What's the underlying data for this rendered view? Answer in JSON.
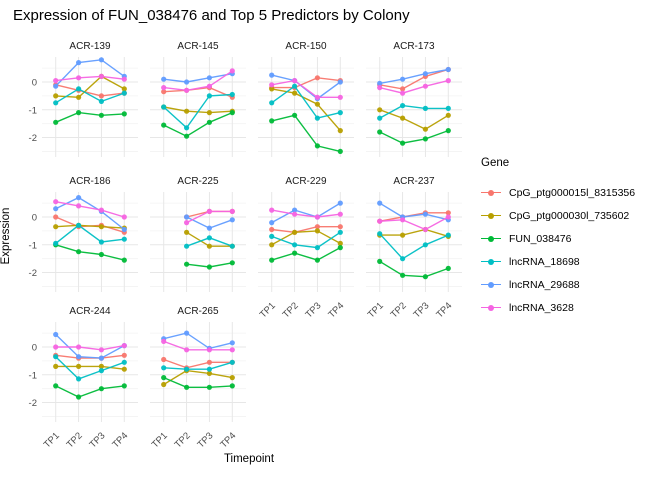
{
  "chart_data": {
    "type": "line",
    "title": "Expression of FUN_038476 and Top 5 Predictors by Colony",
    "xlabel": "Timepoint",
    "ylabel": "Expression",
    "x": [
      "TP1",
      "TP2",
      "TP3",
      "TP4"
    ],
    "ylim": [
      -2.7,
      0.9
    ],
    "y_major_ticks": [
      0,
      -1,
      -2
    ],
    "y_minor_ticks": [
      0.5,
      -0.5,
      -1.5,
      -2.5
    ],
    "grid": true,
    "legend_position": "right",
    "legend_title": "Gene",
    "genes": [
      {
        "name": "CpG_ptg000015l_8315356",
        "color": "#F8766D"
      },
      {
        "name": "CpG_ptg000030l_735602",
        "color": "#B79F00"
      },
      {
        "name": "FUN_038476",
        "color": "#00BA38"
      },
      {
        "name": "lncRNA_18698",
        "color": "#00BFC4"
      },
      {
        "name": "lncRNA_29688",
        "color": "#619CFF"
      },
      {
        "name": "lncRNA_3628",
        "color": "#F564E2"
      }
    ],
    "facets": [
      {
        "name": "ACR-139",
        "values": [
          [
            -0.1,
            -0.3,
            -0.5,
            -0.4
          ],
          [
            -0.5,
            -0.55,
            0.2,
            -0.25
          ],
          [
            -1.45,
            -1.1,
            -1.2,
            -1.15
          ],
          [
            -0.75,
            -0.25,
            -0.7,
            -0.4
          ],
          [
            -0.15,
            0.7,
            0.8,
            0.2
          ],
          [
            0.05,
            0.15,
            0.2,
            0.1
          ]
        ]
      },
      {
        "name": "ACR-145",
        "values": [
          [
            -0.35,
            -0.3,
            -0.2,
            -0.55
          ],
          [
            -0.9,
            -1.05,
            -1.1,
            -1.05
          ],
          [
            -1.55,
            -1.95,
            -1.45,
            -1.1
          ],
          [
            -0.9,
            -1.65,
            -0.5,
            -0.45
          ],
          [
            0.1,
            0.0,
            0.15,
            0.3
          ],
          [
            -0.2,
            -0.3,
            -0.15,
            0.4
          ]
        ]
      },
      {
        "name": "ACR-150",
        "values": [
          [
            -0.2,
            -0.2,
            0.15,
            0.05
          ],
          [
            -0.25,
            -0.4,
            -0.8,
            -1.75
          ],
          [
            -1.4,
            -1.2,
            -2.3,
            -2.5
          ],
          [
            -0.75,
            -0.15,
            -1.3,
            -1.1
          ],
          [
            0.25,
            0.05,
            -0.6,
            0.0
          ],
          [
            -0.1,
            0.05,
            -0.55,
            -0.55
          ]
        ]
      },
      {
        "name": "ACR-173",
        "values": [
          [
            -0.1,
            -0.25,
            0.2,
            0.45
          ],
          [
            -1.0,
            -1.3,
            -1.7,
            -1.2
          ],
          [
            -1.8,
            -2.2,
            -2.05,
            -1.75
          ],
          [
            -1.3,
            -0.85,
            -0.95,
            -0.95
          ],
          [
            -0.05,
            0.1,
            0.3,
            0.45
          ],
          [
            -0.2,
            -0.4,
            -0.15,
            0.05
          ]
        ]
      },
      {
        "name": "ACR-186",
        "values": [
          [
            0.0,
            -0.35,
            -0.3,
            -0.55
          ],
          [
            -0.35,
            -0.3,
            -0.35,
            -0.4
          ],
          [
            -1.0,
            -1.25,
            -1.35,
            -1.55
          ],
          [
            -0.95,
            -0.3,
            -0.9,
            -0.8
          ],
          [
            0.3,
            0.7,
            0.2,
            -0.45
          ],
          [
            0.55,
            0.4,
            0.25,
            0.0
          ]
        ]
      },
      {
        "name": "ACR-225",
        "values": [
          [
            null,
            0.0,
            0.2,
            0.2
          ],
          [
            null,
            -0.55,
            -1.05,
            -1.05
          ],
          [
            null,
            -1.7,
            -1.8,
            -1.65
          ],
          [
            null,
            -1.05,
            -0.75,
            -1.05
          ],
          [
            null,
            0.0,
            -0.4,
            -0.1
          ],
          [
            null,
            -0.2,
            0.2,
            0.2
          ]
        ]
      },
      {
        "name": "ACR-229",
        "values": [
          [
            -0.45,
            -0.55,
            -0.35,
            -0.35
          ],
          [
            -1.0,
            -0.55,
            -0.5,
            -0.95
          ],
          [
            -1.55,
            -1.3,
            -1.55,
            -1.1
          ],
          [
            -0.7,
            -1.0,
            -1.1,
            -0.55
          ],
          [
            -0.2,
            0.25,
            0.0,
            0.5
          ],
          [
            0.25,
            0.1,
            0.0,
            0.1
          ]
        ]
      },
      {
        "name": "ACR-237",
        "values": [
          [
            -0.15,
            0.0,
            0.15,
            0.15
          ],
          [
            -0.65,
            -0.65,
            -0.45,
            -0.7
          ],
          [
            -1.6,
            -2.1,
            -2.15,
            -1.85
          ],
          [
            -0.6,
            -1.5,
            -1.0,
            -0.65
          ],
          [
            0.5,
            0.0,
            0.1,
            -0.1
          ],
          [
            -0.15,
            -0.1,
            -0.45,
            0.0
          ]
        ]
      },
      {
        "name": "ACR-244",
        "values": [
          [
            -0.3,
            -0.4,
            -0.4,
            -0.3
          ],
          [
            -0.7,
            -0.7,
            -0.7,
            -0.8
          ],
          [
            -1.4,
            -1.8,
            -1.5,
            -1.4
          ],
          [
            -0.35,
            -1.15,
            -0.85,
            -0.55
          ],
          [
            0.45,
            -0.35,
            -0.4,
            0.05
          ],
          [
            0.0,
            0.0,
            -0.1,
            0.05
          ]
        ]
      },
      {
        "name": "ACR-265",
        "values": [
          [
            -0.45,
            -0.75,
            -0.55,
            -0.55
          ],
          [
            -1.35,
            -0.85,
            -0.95,
            -1.1
          ],
          [
            -1.1,
            -1.45,
            -1.45,
            -1.4
          ],
          [
            -0.75,
            -0.8,
            -0.8,
            -0.55
          ],
          [
            0.3,
            0.5,
            -0.05,
            0.15
          ],
          [
            0.2,
            -0.1,
            -0.1,
            -0.1
          ]
        ]
      }
    ],
    "grid_colors": {
      "major": "#E7E7E7",
      "minor": "#F3F3F3"
    },
    "tick_label_color": "#4D4D4D",
    "strip_label_color": "#1A1A1A"
  }
}
